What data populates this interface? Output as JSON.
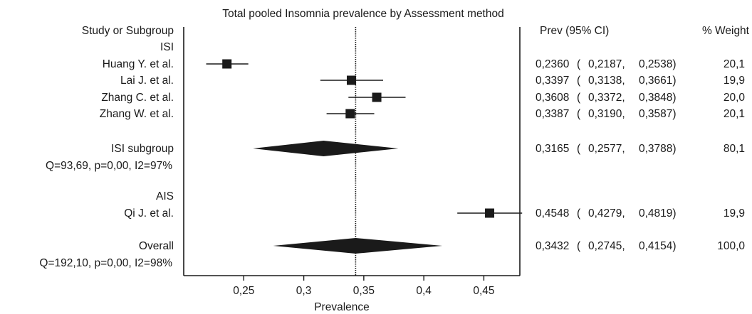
{
  "chart_data": {
    "type": "forest",
    "title": "Total pooled Insomnia prevalence by Assessment method",
    "xlabel": "Prevalence",
    "xlim": [
      0.2,
      0.48
    ],
    "xticks": [
      0.25,
      0.3,
      0.35,
      0.4,
      0.45
    ],
    "xtick_labels": [
      "0,25",
      "0,3",
      "0,35",
      "0,4",
      "0,45"
    ],
    "pooled_line": 0.3432,
    "headers": {
      "study": "Study or Subgroup",
      "prev": "Prev (95% CI)",
      "weight": "% Weight"
    },
    "rows": [
      {
        "type": "group",
        "label": "ISI"
      },
      {
        "type": "study",
        "label": "Huang Y. et al.",
        "est": 0.236,
        "lo": 0.2187,
        "hi": 0.2538,
        "est_text": "0,2360",
        "lo_text": "0,2187",
        "hi_text": "0,2538",
        "weight": "20,1"
      },
      {
        "type": "study",
        "label": "Lai J. et al.",
        "est": 0.3397,
        "lo": 0.3138,
        "hi": 0.3661,
        "est_text": "0,3397",
        "lo_text": "0,3138",
        "hi_text": "0,3661",
        "weight": "19,9"
      },
      {
        "type": "study",
        "label": "Zhang C. et al.",
        "est": 0.3608,
        "lo": 0.3372,
        "hi": 0.3848,
        "est_text": "0,3608",
        "lo_text": "0,3372",
        "hi_text": "0,3848",
        "weight": "20,0"
      },
      {
        "type": "study",
        "label": "Zhang W. et al.",
        "est": 0.3387,
        "lo": 0.319,
        "hi": 0.3587,
        "est_text": "0,3387",
        "lo_text": "0,3190",
        "hi_text": "0,3587",
        "weight": "20,1"
      },
      {
        "type": "summary",
        "label": "ISI  subgroup",
        "est": 0.3165,
        "lo": 0.2577,
        "hi": 0.3788,
        "est_text": "0,3165",
        "lo_text": "0,2577",
        "hi_text": "0,3788",
        "weight": "80,1"
      },
      {
        "type": "stats",
        "label": "Q=93,69, p=0,00, I2=97%"
      },
      {
        "type": "group",
        "label": "AIS"
      },
      {
        "type": "study",
        "label": "Qi J. et al.",
        "est": 0.4548,
        "lo": 0.4279,
        "hi": 0.4819,
        "est_text": "0,4548",
        "lo_text": "0,4279",
        "hi_text": "0,4819",
        "weight": "19,9"
      },
      {
        "type": "summary",
        "label": "Overall",
        "est": 0.3432,
        "lo": 0.2745,
        "hi": 0.4154,
        "est_text": "0,3432",
        "lo_text": "0,2745",
        "hi_text": "0,4154",
        "weight": "100,0"
      },
      {
        "type": "stats",
        "label": "Q=192,10, p=0,00, I2=98%"
      }
    ]
  }
}
